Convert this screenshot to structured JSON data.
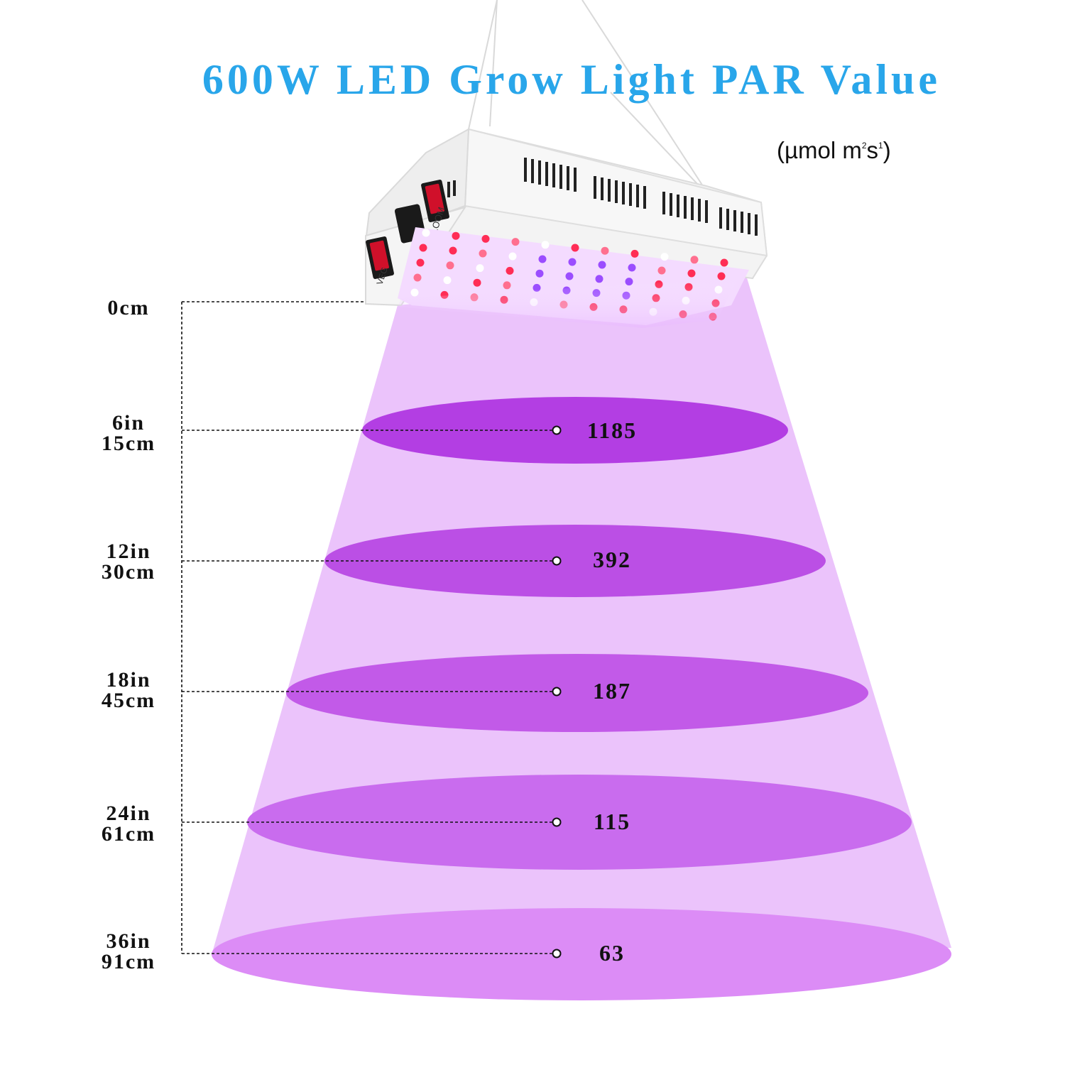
{
  "title": "600W LED Grow Light PAR Value",
  "unit": {
    "prefix": "(µmol m",
    "sup_1": "2",
    "mid": "s",
    "sup_2": "1",
    "suffix": ")"
  },
  "lamp": {
    "switch_left_label": "VEG",
    "switch_right_label": "BLOOM",
    "body_color": "#f2f2f2",
    "led_colors": [
      "#ff2d55",
      "#ff6f8f",
      "#9b4dff",
      "#ffffff"
    ]
  },
  "colors": {
    "beam": "#ebc3fb",
    "title": "#29a6ea",
    "rings": [
      "#b33ee3",
      "#bb4fe5",
      "#c25ae8",
      "#c96cee",
      "#dc8cf6"
    ]
  },
  "levels": [
    {
      "inches": "",
      "cm": "0cm",
      "par": ""
    },
    {
      "inches": "6in",
      "cm": "15cm",
      "par": "1185"
    },
    {
      "inches": "12in",
      "cm": "30cm",
      "par": "392"
    },
    {
      "inches": "18in",
      "cm": "45cm",
      "par": "187"
    },
    {
      "inches": "24in",
      "cm": "61cm",
      "par": "115"
    },
    {
      "inches": "36in",
      "cm": "91cm",
      "par": "63"
    }
  ]
}
